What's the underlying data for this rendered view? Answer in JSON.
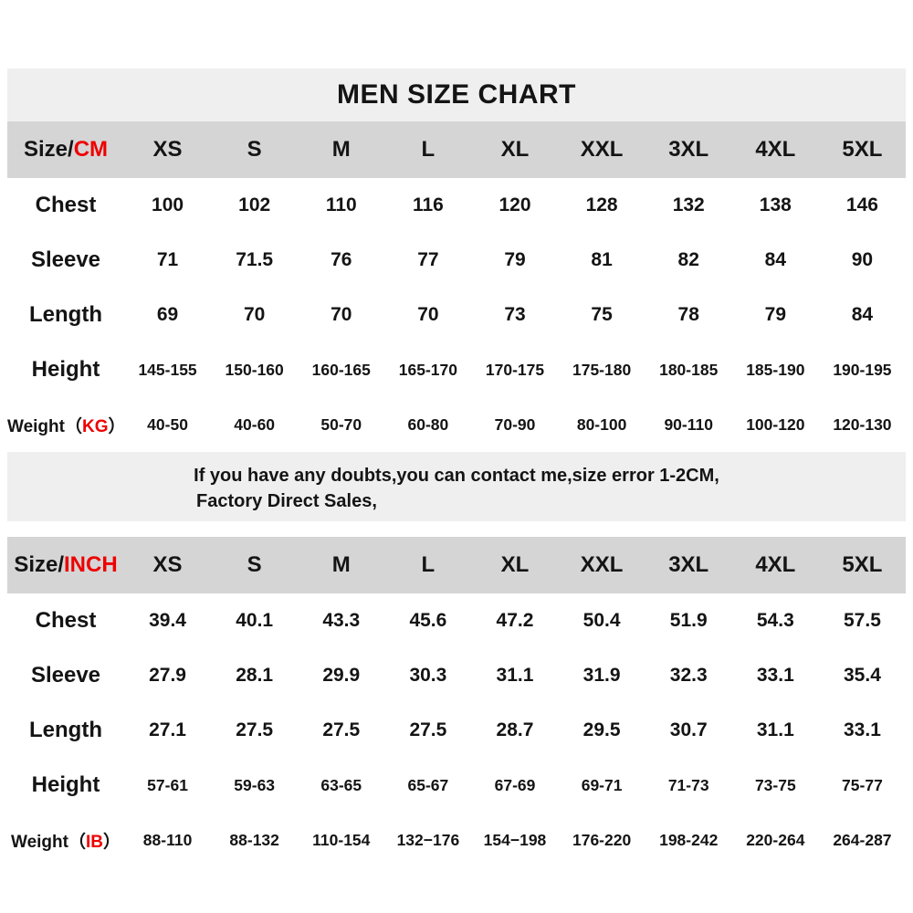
{
  "title": "MEN SIZE CHART",
  "accent_color": "#ee0000",
  "band_gray": "#f0efef",
  "header_gray": "#d6d5d5",
  "note": {
    "line1": "If you have any doubts,you can contact me,size error 1-2CM,",
    "line2": "Factory Direct Sales,"
  },
  "tables": [
    {
      "header_black": "Size/",
      "header_red": "CM",
      "sizes": [
        "XS",
        "S",
        "M",
        "L",
        "XL",
        "XXL",
        "3XL",
        "4XL",
        "5XL"
      ],
      "rows": [
        {
          "label_prefix": "Chest",
          "label_unit": "",
          "label_suffix": "",
          "values": [
            "100",
            "102",
            "110",
            "116",
            "120",
            "128",
            "132",
            "138",
            "146"
          ]
        },
        {
          "label_prefix": "Sleeve",
          "label_unit": "",
          "label_suffix": "",
          "values": [
            "71",
            "71.5",
            "76",
            "77",
            "79",
            "81",
            "82",
            "84",
            "90"
          ]
        },
        {
          "label_prefix": "Length",
          "label_unit": "",
          "label_suffix": "",
          "values": [
            "69",
            "70",
            "70",
            "70",
            "73",
            "75",
            "78",
            "79",
            "84"
          ]
        },
        {
          "label_prefix": "Height",
          "label_unit": "",
          "label_suffix": "",
          "values": [
            "145-155",
            "150-160",
            "160-165",
            "165-170",
            "170-175",
            "175-180",
            "180-185",
            "185-190",
            "190-195"
          ]
        },
        {
          "label_prefix": "Weight（",
          "label_unit": "KG",
          "label_suffix": "）",
          "values": [
            "40-50",
            "40-60",
            "50-70",
            "60-80",
            "70-90",
            "80-100",
            "90-110",
            "100-120",
            "120-130"
          ]
        }
      ]
    },
    {
      "header_black": "Size/",
      "header_red": "INCH",
      "sizes": [
        "XS",
        "S",
        "M",
        "L",
        "XL",
        "XXL",
        "3XL",
        "4XL",
        "5XL"
      ],
      "rows": [
        {
          "label_prefix": "Chest",
          "label_unit": "",
          "label_suffix": "",
          "values": [
            "39.4",
            "40.1",
            "43.3",
            "45.6",
            "47.2",
            "50.4",
            "51.9",
            "54.3",
            "57.5"
          ]
        },
        {
          "label_prefix": "Sleeve",
          "label_unit": "",
          "label_suffix": "",
          "values": [
            "27.9",
            "28.1",
            "29.9",
            "30.3",
            "31.1",
            "31.9",
            "32.3",
            "33.1",
            "35.4"
          ]
        },
        {
          "label_prefix": "Length",
          "label_unit": "",
          "label_suffix": "",
          "values": [
            "27.1",
            "27.5",
            "27.5",
            "27.5",
            "28.7",
            "29.5",
            "30.7",
            "31.1",
            "33.1"
          ]
        },
        {
          "label_prefix": "Height",
          "label_unit": "",
          "label_suffix": "",
          "values": [
            "57-61",
            "59-63",
            "63-65",
            "65-67",
            "67-69",
            "69-71",
            "71-73",
            "73-75",
            "75-77"
          ]
        },
        {
          "label_prefix": "Weight（",
          "label_unit": "IB",
          "label_suffix": "）",
          "values": [
            "88-110",
            "88-132",
            "110-154",
            "132−176",
            "154−198",
            "176-220",
            "198-242",
            "220-264",
            "264-287"
          ]
        }
      ]
    }
  ],
  "chart_data": [
    {
      "type": "table",
      "title": "MEN SIZE CHART (CM)",
      "columns": [
        "Size/CM",
        "XS",
        "S",
        "M",
        "L",
        "XL",
        "XXL",
        "3XL",
        "4XL",
        "5XL"
      ],
      "rows": [
        [
          "Chest",
          100,
          102,
          110,
          116,
          120,
          128,
          132,
          138,
          146
        ],
        [
          "Sleeve",
          71,
          71.5,
          76,
          77,
          79,
          81,
          82,
          84,
          90
        ],
        [
          "Length",
          69,
          70,
          70,
          70,
          73,
          75,
          78,
          79,
          84
        ],
        [
          "Height",
          "145-155",
          "150-160",
          "160-165",
          "165-170",
          "170-175",
          "175-180",
          "180-185",
          "185-190",
          "190-195"
        ],
        [
          "Weight（KG）",
          "40-50",
          "40-60",
          "50-70",
          "60-80",
          "70-90",
          "80-100",
          "90-110",
          "100-120",
          "120-130"
        ]
      ]
    },
    {
      "type": "table",
      "title": "MEN SIZE CHART (INCH)",
      "columns": [
        "Size/INCH",
        "XS",
        "S",
        "M",
        "L",
        "XL",
        "XXL",
        "3XL",
        "4XL",
        "5XL"
      ],
      "rows": [
        [
          "Chest",
          39.4,
          40.1,
          43.3,
          45.6,
          47.2,
          50.4,
          51.9,
          54.3,
          57.5
        ],
        [
          "Sleeve",
          27.9,
          28.1,
          29.9,
          30.3,
          31.1,
          31.9,
          32.3,
          33.1,
          35.4
        ],
        [
          "Length",
          27.1,
          27.5,
          27.5,
          27.5,
          28.7,
          29.5,
          30.7,
          31.1,
          33.1
        ],
        [
          "Height",
          "57-61",
          "59-63",
          "63-65",
          "65-67",
          "67-69",
          "69-71",
          "71-73",
          "73-75",
          "75-77"
        ],
        [
          "Weight（IB）",
          "88-110",
          "88-132",
          "110-154",
          "132−176",
          "154−198",
          "176-220",
          "198-242",
          "220-264",
          "264-287"
        ]
      ]
    }
  ]
}
